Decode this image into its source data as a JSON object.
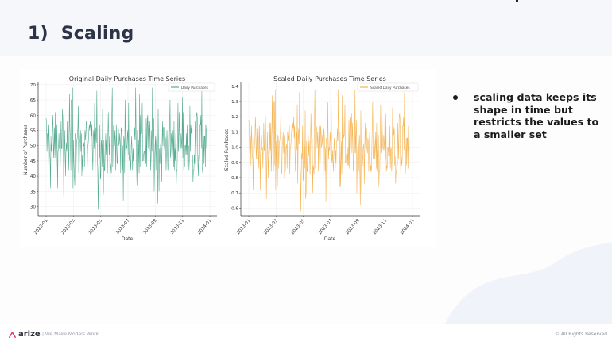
{
  "slide": {
    "number": "1)",
    "title": "Scaling",
    "bullets": [
      "scaling data keeps its shape in time but restricts the values to a smaller set"
    ]
  },
  "footer": {
    "logo_text": "arize",
    "tagline": "| We Make Models Work",
    "rights": "© All Rights Reserved"
  },
  "colors": {
    "original_series": "#3a9e7e",
    "scaled_series": "#f2a93b",
    "title_text": "#2d3447",
    "logo_accent": "#e8336b"
  },
  "chart_data": [
    {
      "type": "line",
      "title": "Original Daily Purchases Time Series",
      "xlabel": "Date",
      "ylabel": "Number of Purchases",
      "x_ticks": [
        "2023-01",
        "2023-03",
        "2023-05",
        "2023-07",
        "2023-09",
        "2023-11",
        "2024-01"
      ],
      "y_ticks": [
        30,
        35,
        40,
        45,
        50,
        55,
        60,
        65,
        70
      ],
      "ylim": [
        27,
        71
      ],
      "grid": true,
      "legend": {
        "position": "upper right",
        "entries": [
          "Daily Purchases"
        ]
      },
      "series": [
        {
          "name": "Daily Purchases",
          "color": "#3a9e7e",
          "x_range": [
            "2023-01-01",
            "2023-12-31"
          ],
          "mean": 50,
          "min": 29,
          "max": 69,
          "n_points": 365
        }
      ]
    },
    {
      "type": "line",
      "title": "Scaled Daily Purchases Time Series",
      "xlabel": "Date",
      "ylabel": "Scaled Purchases",
      "x_ticks": [
        "2023-01",
        "2023-03",
        "2023-05",
        "2023-07",
        "2023-09",
        "2023-11",
        "2024-01"
      ],
      "y_ticks": [
        0.6,
        0.7,
        0.8,
        0.9,
        1.0,
        1.1,
        1.2,
        1.3,
        1.4
      ],
      "ylim": [
        0.55,
        1.43
      ],
      "grid": true,
      "legend": {
        "position": "upper right",
        "entries": [
          "Scaled Daily Purchases"
        ]
      },
      "series": [
        {
          "name": "Scaled Daily Purchases",
          "color": "#f2a93b",
          "x_range": [
            "2023-01-01",
            "2023-12-31"
          ],
          "mean": 1.0,
          "min": 0.58,
          "max": 1.4,
          "n_points": 365
        }
      ]
    }
  ]
}
